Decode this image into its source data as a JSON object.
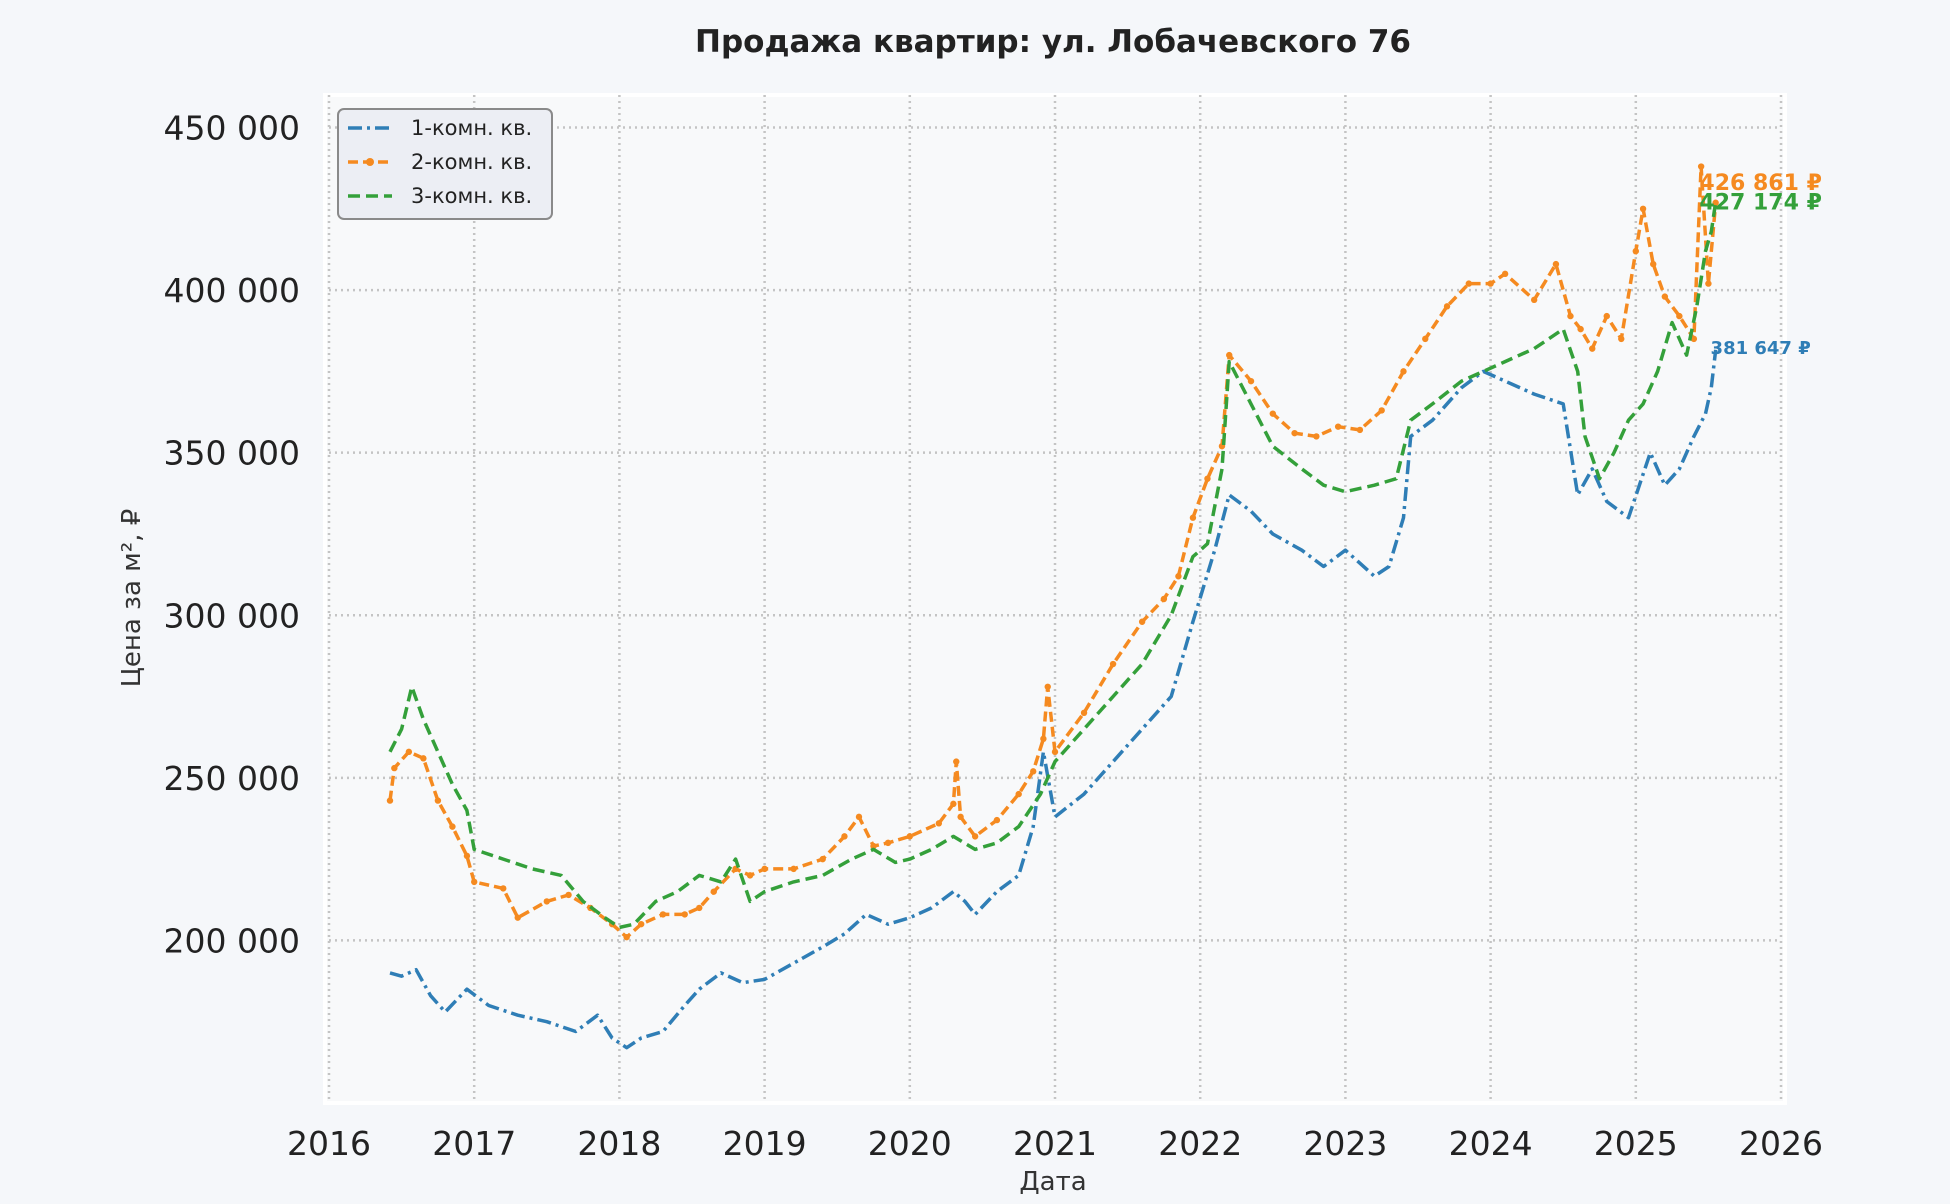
{
  "chart_data": {
    "type": "line",
    "title": "Продажа квартир: ул. Лобачевского 76",
    "xlabel": "Дата",
    "ylabel": "Цена за м², ₽",
    "xlim": [
      2016,
      2026
    ],
    "ylim": [
      150000,
      460000
    ],
    "x_ticks": [
      "2016",
      "2017",
      "2018",
      "2019",
      "2020",
      "2021",
      "2022",
      "2023",
      "2024",
      "2025",
      "2026"
    ],
    "y_ticks": [
      {
        "value": 200000,
        "label": "200 000"
      },
      {
        "value": 250000,
        "label": "250 000"
      },
      {
        "value": 300000,
        "label": "300 000"
      },
      {
        "value": 350000,
        "label": "350 000"
      },
      {
        "value": 400000,
        "label": "400 000"
      },
      {
        "value": 450000,
        "label": "450 000"
      }
    ],
    "grid": true,
    "legend_position": "top-left",
    "series": [
      {
        "name": "1-комн. кв.",
        "color": "#2f7eb6",
        "dash": "dashdot",
        "end_label": "381 647 ₽",
        "x": [
          2016.42,
          2016.5,
          2016.6,
          2016.7,
          2016.8,
          2016.95,
          2017.1,
          2017.3,
          2017.5,
          2017.7,
          2017.85,
          2017.95,
          2018.05,
          2018.15,
          2018.3,
          2018.45,
          2018.55,
          2018.7,
          2018.85,
          2019.0,
          2019.2,
          2019.4,
          2019.55,
          2019.7,
          2019.85,
          2020.0,
          2020.15,
          2020.3,
          2020.38,
          2020.45,
          2020.6,
          2020.75,
          2020.85,
          2020.92,
          2021.0,
          2021.2,
          2021.4,
          2021.6,
          2021.8,
          2021.95,
          2022.1,
          2022.2,
          2022.35,
          2022.5,
          2022.7,
          2022.85,
          2023.0,
          2023.2,
          2023.3,
          2023.4,
          2023.45,
          2023.6,
          2023.8,
          2023.95,
          2024.1,
          2024.3,
          2024.5,
          2024.6,
          2024.7,
          2024.8,
          2024.95,
          2025.1,
          2025.2,
          2025.3,
          2025.4,
          2025.48,
          2025.52,
          2025.55
        ],
        "y": [
          190000,
          189000,
          191000,
          183000,
          178000,
          185000,
          180000,
          177000,
          175000,
          172000,
          177000,
          170000,
          167000,
          170000,
          172000,
          180000,
          185000,
          190000,
          187000,
          188000,
          193000,
          198000,
          202000,
          208000,
          205000,
          207000,
          210000,
          215000,
          212000,
          208000,
          215000,
          220000,
          235000,
          258000,
          238000,
          245000,
          255000,
          265000,
          275000,
          298000,
          320000,
          337000,
          332000,
          325000,
          320000,
          315000,
          320000,
          312000,
          315000,
          330000,
          355000,
          360000,
          370000,
          375000,
          372000,
          368000,
          365000,
          337000,
          345000,
          335000,
          330000,
          350000,
          340000,
          345000,
          355000,
          362000,
          370000,
          381647
        ]
      },
      {
        "name": "2-комн. кв.",
        "color": "#f58a20",
        "dash": "dashed-dots",
        "end_label": "426 861 ₽",
        "x": [
          2016.42,
          2016.45,
          2016.55,
          2016.65,
          2016.75,
          2016.85,
          2016.95,
          2017.0,
          2017.2,
          2017.3,
          2017.5,
          2017.65,
          2017.8,
          2017.95,
          2018.05,
          2018.15,
          2018.3,
          2018.45,
          2018.55,
          2018.65,
          2018.8,
          2018.9,
          2019.0,
          2019.2,
          2019.4,
          2019.55,
          2019.65,
          2019.75,
          2019.85,
          2020.0,
          2020.2,
          2020.3,
          2020.32,
          2020.35,
          2020.45,
          2020.6,
          2020.75,
          2020.85,
          2020.92,
          2020.95,
          2021.0,
          2021.2,
          2021.4,
          2021.6,
          2021.75,
          2021.85,
          2021.95,
          2022.05,
          2022.15,
          2022.2,
          2022.35,
          2022.5,
          2022.65,
          2022.8,
          2022.95,
          2023.1,
          2023.25,
          2023.4,
          2023.55,
          2023.7,
          2023.85,
          2024.0,
          2024.1,
          2024.3,
          2024.45,
          2024.55,
          2024.62,
          2024.7,
          2024.8,
          2024.9,
          2025.0,
          2025.05,
          2025.12,
          2025.2,
          2025.3,
          2025.4,
          2025.45,
          2025.5,
          2025.55
        ],
        "y": [
          243000,
          253000,
          258000,
          256000,
          243000,
          235000,
          226000,
          218000,
          216000,
          207000,
          212000,
          214000,
          210000,
          205000,
          201000,
          205000,
          208000,
          208000,
          210000,
          215000,
          222000,
          220000,
          222000,
          222000,
          225000,
          232000,
          238000,
          229000,
          230000,
          232000,
          236000,
          242000,
          255000,
          238000,
          232000,
          237000,
          245000,
          252000,
          262000,
          278000,
          258000,
          270000,
          285000,
          298000,
          305000,
          312000,
          330000,
          342000,
          352000,
          380000,
          372000,
          362000,
          356000,
          355000,
          358000,
          357000,
          363000,
          375000,
          385000,
          395000,
          402000,
          402000,
          405000,
          397000,
          408000,
          392000,
          388000,
          382000,
          392000,
          385000,
          412000,
          425000,
          408000,
          398000,
          392000,
          385000,
          438000,
          402000,
          426861
        ]
      },
      {
        "name": "3-комн. кв.",
        "color": "#34a03a",
        "dash": "dashed",
        "end_label": "427 174 ₽",
        "x": [
          2016.42,
          2016.5,
          2016.57,
          2016.65,
          2016.75,
          2016.85,
          2016.95,
          2017.0,
          2017.2,
          2017.4,
          2017.6,
          2017.75,
          2017.9,
          2018.0,
          2018.1,
          2018.25,
          2018.4,
          2018.55,
          2018.7,
          2018.8,
          2018.9,
          2019.0,
          2019.2,
          2019.4,
          2019.6,
          2019.75,
          2019.9,
          2020.0,
          2020.15,
          2020.3,
          2020.45,
          2020.6,
          2020.75,
          2020.9,
          2021.0,
          2021.2,
          2021.4,
          2021.6,
          2021.8,
          2021.95,
          2022.05,
          2022.15,
          2022.2,
          2022.35,
          2022.5,
          2022.7,
          2022.85,
          2023.0,
          2023.2,
          2023.35,
          2023.45,
          2023.6,
          2023.8,
          2023.95,
          2024.1,
          2024.3,
          2024.5,
          2024.6,
          2024.65,
          2024.75,
          2024.85,
          2024.95,
          2025.05,
          2025.15,
          2025.25,
          2025.35,
          2025.42,
          2025.48,
          2025.52,
          2025.55
        ],
        "y": [
          258000,
          265000,
          278000,
          268000,
          258000,
          248000,
          240000,
          228000,
          225000,
          222000,
          220000,
          212000,
          207000,
          204000,
          205000,
          212000,
          215000,
          220000,
          218000,
          225000,
          212000,
          215000,
          218000,
          220000,
          225000,
          228000,
          224000,
          225000,
          228000,
          232000,
          228000,
          230000,
          235000,
          245000,
          255000,
          265000,
          275000,
          285000,
          300000,
          318000,
          322000,
          345000,
          378000,
          365000,
          352000,
          345000,
          340000,
          338000,
          340000,
          342000,
          360000,
          365000,
          372000,
          375000,
          378000,
          382000,
          388000,
          375000,
          355000,
          342000,
          350000,
          360000,
          365000,
          375000,
          390000,
          380000,
          395000,
          412000,
          418000,
          427174
        ]
      }
    ]
  }
}
